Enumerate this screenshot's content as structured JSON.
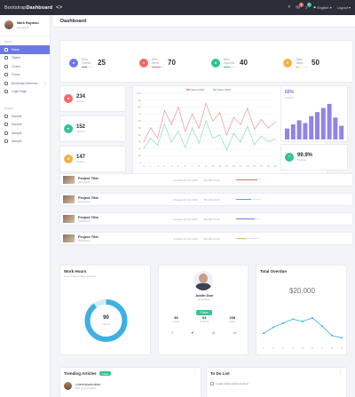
{
  "app": {
    "brand_prefix": "Bootstrap",
    "brand_name": "Dashboard",
    "language": "English",
    "logout": "Logout"
  },
  "colors": {
    "accent": "#6c7ae0",
    "red": "#f46a6a",
    "green": "#34c38f",
    "yellow": "#f1b44c",
    "blue": "#3cb1e2",
    "sidebar_bg": "#ffffff",
    "topbar_bg": "#2a2e36"
  },
  "user": {
    "name": "Mark Rayman",
    "role": "Developer"
  },
  "sidebar": {
    "menu_label": "Menu",
    "items": [
      {
        "label": "Home",
        "active": true
      },
      {
        "label": "Tables"
      },
      {
        "label": "Charts"
      },
      {
        "label": "Forms"
      },
      {
        "label": "Bootstrap Elements"
      },
      {
        "label": "Login Page"
      }
    ],
    "more_label": "Pages",
    "more_items": [
      {
        "label": "Sample"
      },
      {
        "label": "Sample"
      },
      {
        "label": "Sample"
      },
      {
        "label": "Sample"
      }
    ]
  },
  "page": {
    "title": "Dashboard"
  },
  "stats": [
    {
      "label1": "New",
      "label2": "Clients",
      "value": "25",
      "color": "#6c7ae0",
      "progress": 0.4
    },
    {
      "label1": "New",
      "label2": "Items",
      "value": "70",
      "color": "#f46a6a",
      "progress": 0.7
    },
    {
      "label1": "New",
      "label2": "Invoices",
      "value": "40",
      "color": "#34c38f",
      "progress": 0.5
    },
    {
      "label1": "Open",
      "label2": "Tasks",
      "value": "50",
      "color": "#f1b44c",
      "progress": 0.3
    }
  ],
  "kpis": [
    {
      "value": "234",
      "label": "Users",
      "color": "#f46a6a"
    },
    {
      "value": "152",
      "label": "Visitors",
      "color": "#34c38f"
    },
    {
      "value": "147",
      "label": "Orders",
      "color": "#f1b44c"
    }
  ],
  "line_chart": {
    "legend": [
      "Sales 2018",
      "Sales 2019"
    ],
    "x": [
      "0",
      "1",
      "2",
      "3",
      "4",
      "5",
      "6",
      "7",
      "8",
      "9",
      "10",
      "11",
      "12",
      "13",
      "14",
      "15",
      "16",
      "17",
      "18",
      "19"
    ],
    "series": [
      {
        "values": [
          30,
          50,
          35,
          75,
          55,
          80,
          45,
          70,
          50,
          85,
          60,
          72,
          40,
          65,
          55,
          78,
          48,
          62,
          50,
          58
        ],
        "color": "#f2a1a1"
      },
      {
        "values": [
          20,
          35,
          25,
          55,
          30,
          45,
          22,
          50,
          28,
          60,
          35,
          40,
          18,
          42,
          30,
          52,
          26,
          38,
          30,
          34
        ],
        "color": "#98e0cf"
      }
    ],
    "ylim": [
      0,
      100
    ]
  },
  "mini_bar": {
    "percent": "65%",
    "label": "Growth",
    "values": [
      8,
      11,
      14,
      12,
      17,
      20,
      23,
      26,
      16,
      10
    ],
    "color": "#7c6fe3",
    "kpi_value": "99.9%",
    "kpi_label": "Uptime"
  },
  "projects": [
    {
      "title": "Project Title",
      "sub": "Description",
      "date": "Created 23 Oct 2019",
      "price": "$5,000",
      "price2": "20.00",
      "color": "#f46a6a",
      "progress": 0.85
    },
    {
      "title": "Project Title",
      "sub": "Description",
      "date": "Created 23 Oct 2019",
      "price": "$5,000",
      "price2": "20.00",
      "color": "#34c38f",
      "progress": 0.6
    },
    {
      "title": "Project Title",
      "sub": "Description",
      "date": "Created 23 Oct 2019",
      "price": "$5,000",
      "price2": "20.00",
      "color": "#6c7ae0",
      "progress": 0.75
    },
    {
      "title": "Project Title",
      "sub": "Description",
      "date": "Created 23 Oct 2019",
      "price": "$5,000",
      "price2": "20.00",
      "color": "#f1b44c",
      "progress": 0.4
    }
  ],
  "work_hours": {
    "title": "Work Hours",
    "sub": "Lorem ipsum dolor sit amet",
    "value": "90",
    "unit": "Hours",
    "fraction": 0.9
  },
  "profile_card": {
    "name": "Justin Doe",
    "role": "Developer",
    "button": "Follow",
    "stats": [
      {
        "value": "38",
        "label": "Posts"
      },
      {
        "value": "64",
        "label": "Friends"
      },
      {
        "value": "208",
        "label": "Likes"
      }
    ]
  },
  "overdue": {
    "title": "Total Overdue",
    "value": "$20,000",
    "values": [
      18,
      28,
      35,
      42,
      38,
      44,
      30,
      14,
      10
    ],
    "x": [
      "1",
      "2",
      "3",
      "4",
      "5",
      "6",
      "7",
      "8",
      "9"
    ]
  },
  "trending": {
    "title": "Trending Articles",
    "badge": "Latest",
    "article_title": "Lorem ipsum dolor",
    "article_sub": "Sed ut perspiciatis"
  },
  "todo": {
    "title": "To Do List",
    "item": "Lorem ipsum dolor sit amet"
  }
}
